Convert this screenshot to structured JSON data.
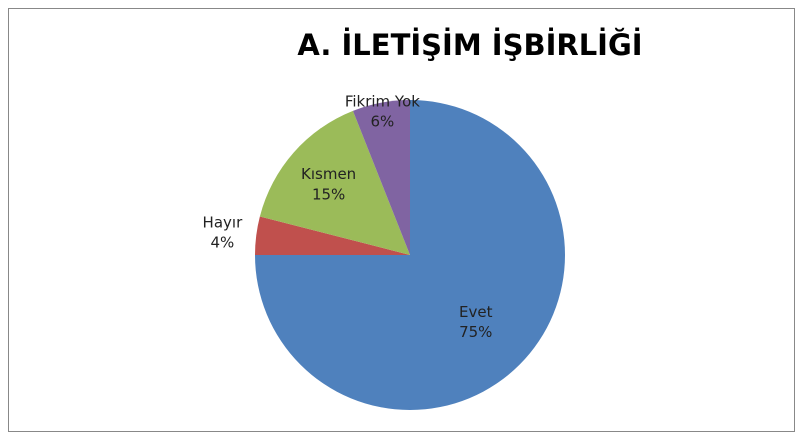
{
  "chart_data": {
    "type": "pie",
    "title": "A. İLETİŞİM İŞBİRLİĞİ",
    "categories": [
      "Evet",
      "Hayır",
      "Kısmen",
      "Fikrim Yok"
    ],
    "values": [
      75,
      4,
      15,
      6
    ],
    "value_labels": [
      "75%",
      "4%",
      "15%",
      "6%"
    ],
    "colors": [
      "#4f81bd",
      "#c0504d",
      "#9bbb59",
      "#8064a2"
    ]
  }
}
